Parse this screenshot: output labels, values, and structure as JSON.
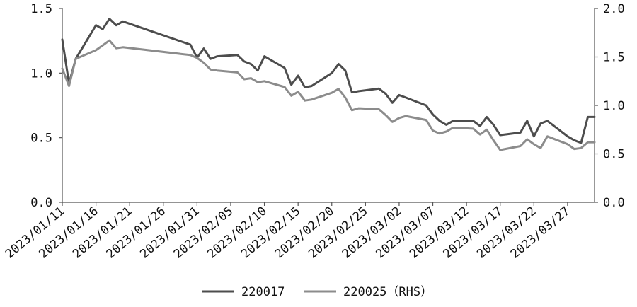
{
  "chart_data": {
    "type": "line",
    "x": [
      "2023/01/11",
      "2023/01/12",
      "2023/01/13",
      "2023/01/16",
      "2023/01/17",
      "2023/01/18",
      "2023/01/19",
      "2023/01/20",
      "2023/01/30",
      "2023/01/31",
      "2023/02/01",
      "2023/02/02",
      "2023/02/03",
      "2023/02/06",
      "2023/02/07",
      "2023/02/08",
      "2023/02/09",
      "2023/02/10",
      "2023/02/13",
      "2023/02/14",
      "2023/02/15",
      "2023/02/16",
      "2023/02/17",
      "2023/02/20",
      "2023/02/21",
      "2023/02/22",
      "2023/02/23",
      "2023/02/24",
      "2023/02/27",
      "2023/02/28",
      "2023/03/01",
      "2023/03/02",
      "2023/03/03",
      "2023/03/06",
      "2023/03/07",
      "2023/03/08",
      "2023/03/09",
      "2023/03/10",
      "2023/03/13",
      "2023/03/14",
      "2023/03/15",
      "2023/03/16",
      "2023/03/17",
      "2023/03/20",
      "2023/03/21",
      "2023/03/22",
      "2023/03/23",
      "2023/03/24",
      "2023/03/27",
      "2023/03/28",
      "2023/03/29",
      "2023/03/30",
      "2023/03/31"
    ],
    "series": [
      {
        "name": "220017",
        "axis": "left",
        "color": "#4d4d4d",
        "values": [
          1.26,
          0.92,
          1.11,
          1.37,
          1.34,
          1.42,
          1.37,
          1.4,
          1.22,
          1.12,
          1.19,
          1.11,
          1.13,
          1.14,
          1.09,
          1.07,
          1.02,
          1.13,
          1.04,
          0.91,
          0.98,
          0.89,
          0.9,
          1.0,
          1.07,
          1.02,
          0.85,
          0.86,
          0.88,
          0.84,
          0.77,
          0.83,
          0.81,
          0.75,
          0.68,
          0.63,
          0.6,
          0.63,
          0.63,
          0.59,
          0.66,
          0.6,
          0.52,
          0.54,
          0.63,
          0.51,
          0.61,
          0.63,
          0.51,
          0.48,
          0.46,
          0.66,
          0.66
        ]
      },
      {
        "name": "220025（RHS）",
        "axis": "right",
        "color": "#8c8c8c",
        "values": [
          1.38,
          1.2,
          1.48,
          1.57,
          1.62,
          1.67,
          1.59,
          1.6,
          1.52,
          1.49,
          1.44,
          1.37,
          1.36,
          1.34,
          1.27,
          1.28,
          1.24,
          1.25,
          1.19,
          1.1,
          1.14,
          1.05,
          1.06,
          1.13,
          1.17,
          1.08,
          0.95,
          0.97,
          0.96,
          0.9,
          0.83,
          0.87,
          0.89,
          0.85,
          0.74,
          0.71,
          0.73,
          0.77,
          0.76,
          0.7,
          0.75,
          0.64,
          0.54,
          0.58,
          0.65,
          0.6,
          0.56,
          0.68,
          0.6,
          0.55,
          0.56,
          0.62,
          0.62
        ]
      }
    ],
    "xtick_labels": [
      "2023/01/11",
      "2023/01/16",
      "2023/01/21",
      "2023/01/26",
      "2023/01/31",
      "2023/02/05",
      "2023/02/10",
      "2023/02/15",
      "2023/02/20",
      "2023/02/25",
      "2023/03/02",
      "2023/03/07",
      "2023/03/12",
      "2023/03/17",
      "2023/03/22",
      "2023/03/27"
    ],
    "yticks_left": [
      "0.0",
      "0.5",
      "1.0",
      "1.5"
    ],
    "yticks_right": [
      "0.0",
      "0.5",
      "1.0",
      "1.5",
      "2.0"
    ],
    "ylim_left": [
      0,
      1.5
    ],
    "ylim_right": [
      0,
      2.0
    ],
    "xlabel": "",
    "ylabel": "",
    "title": "",
    "grid": false,
    "legend_position": "bottom-center"
  }
}
